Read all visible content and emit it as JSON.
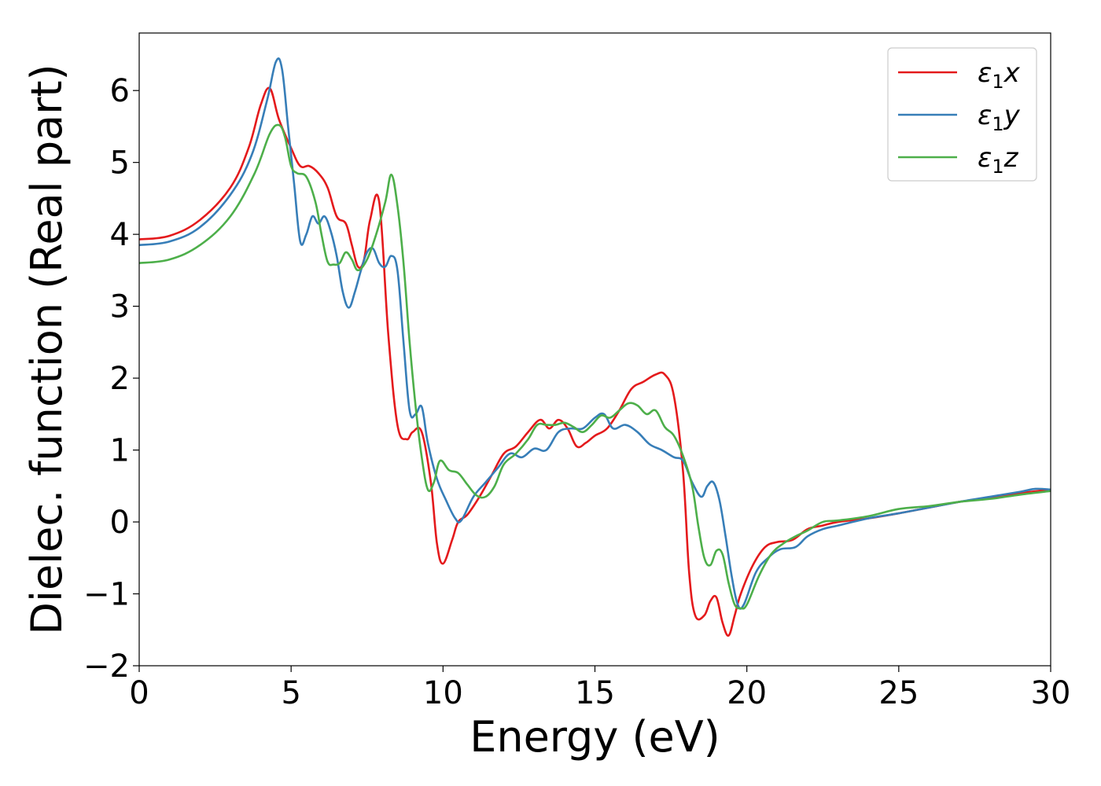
{
  "chart_data": {
    "type": "line",
    "title": "",
    "xlabel": "Energy (eV)",
    "ylabel": "Dielec. function (Real part)",
    "xlim": [
      0,
      30
    ],
    "ylim": [
      -2,
      6.8
    ],
    "xticks": [
      0,
      5,
      10,
      15,
      20,
      25,
      30
    ],
    "xtick_labels": [
      "0",
      "5",
      "10",
      "15",
      "20",
      "25",
      "30"
    ],
    "yticks": [
      -2,
      -1,
      0,
      1,
      2,
      3,
      4,
      5,
      6
    ],
    "ytick_labels": [
      "−2",
      "−1",
      "0",
      "1",
      "2",
      "3",
      "4",
      "5",
      "6"
    ],
    "grid": false,
    "legend_position": "top-right",
    "series": [
      {
        "name": "ε1x",
        "label_main": "ε",
        "label_sub": "1",
        "label_suffix": "x",
        "color": "#e41a1c",
        "x": [
          0,
          1,
          2,
          3,
          3.6,
          4.0,
          4.3,
          4.6,
          5.0,
          5.3,
          5.6,
          5.9,
          6.2,
          6.5,
          6.8,
          7.0,
          7.2,
          7.4,
          7.6,
          7.9,
          8.2,
          8.5,
          8.8,
          9.0,
          9.3,
          9.6,
          9.8,
          10.0,
          10.3,
          10.5,
          10.8,
          11.2,
          11.6,
          12.0,
          12.4,
          12.8,
          13.2,
          13.5,
          13.8,
          14.1,
          14.4,
          14.7,
          15.0,
          15.4,
          15.8,
          16.2,
          16.6,
          17.0,
          17.3,
          17.6,
          17.9,
          18.1,
          18.3,
          18.6,
          18.8,
          19.0,
          19.2,
          19.4,
          19.6,
          19.8,
          20.2,
          20.6,
          21.0,
          21.5,
          22.0,
          22.5,
          23,
          24,
          25,
          26,
          27,
          28,
          29,
          30
        ],
        "values": [
          3.93,
          3.98,
          4.2,
          4.65,
          5.2,
          5.8,
          6.03,
          5.6,
          5.2,
          4.95,
          4.95,
          4.85,
          4.65,
          4.25,
          4.15,
          3.85,
          3.55,
          3.65,
          4.2,
          4.45,
          2.6,
          1.35,
          1.15,
          1.25,
          1.25,
          0.55,
          -0.3,
          -0.58,
          -0.25,
          0.0,
          0.1,
          0.35,
          0.65,
          0.95,
          1.05,
          1.25,
          1.42,
          1.3,
          1.42,
          1.3,
          1.05,
          1.1,
          1.2,
          1.3,
          1.55,
          1.85,
          1.95,
          2.05,
          2.05,
          1.75,
          0.7,
          -0.7,
          -1.3,
          -1.3,
          -1.1,
          -1.05,
          -1.4,
          -1.58,
          -1.3,
          -1.0,
          -0.6,
          -0.35,
          -0.28,
          -0.25,
          -0.1,
          -0.05,
          0.0,
          0.05,
          0.12,
          0.2,
          0.28,
          0.33,
          0.4,
          0.45
        ]
      },
      {
        "name": "ε1y",
        "label_main": "ε",
        "label_sub": "1",
        "label_suffix": "y",
        "color": "#377eb8",
        "x": [
          0,
          1,
          2,
          3,
          3.7,
          4.2,
          4.5,
          4.7,
          4.9,
          5.1,
          5.3,
          5.5,
          5.7,
          5.9,
          6.1,
          6.3,
          6.5,
          6.7,
          6.9,
          7.1,
          7.3,
          7.5,
          7.7,
          7.9,
          8.1,
          8.3,
          8.5,
          8.7,
          8.9,
          9.1,
          9.3,
          9.5,
          9.8,
          10.1,
          10.4,
          10.6,
          11.0,
          11.4,
          11.8,
          12.2,
          12.6,
          13.0,
          13.4,
          13.8,
          14.2,
          14.6,
          15.0,
          15.3,
          15.6,
          16.0,
          16.4,
          16.8,
          17.2,
          17.6,
          17.9,
          18.2,
          18.5,
          18.7,
          18.9,
          19.1,
          19.3,
          19.5,
          19.7,
          19.9,
          20.3,
          20.7,
          21.1,
          21.6,
          22.0,
          22.5,
          23,
          24,
          25,
          26,
          27,
          28,
          29,
          29.5,
          30
        ],
        "values": [
          3.85,
          3.9,
          4.1,
          4.55,
          5.1,
          5.85,
          6.4,
          6.3,
          5.5,
          4.7,
          3.9,
          4.0,
          4.25,
          4.15,
          4.25,
          4.05,
          3.7,
          3.2,
          2.98,
          3.2,
          3.5,
          3.75,
          3.8,
          3.6,
          3.55,
          3.7,
          3.5,
          2.5,
          1.55,
          1.5,
          1.6,
          1.1,
          0.6,
          0.3,
          0.05,
          0.02,
          0.35,
          0.55,
          0.75,
          0.95,
          0.9,
          1.02,
          1.0,
          1.25,
          1.3,
          1.3,
          1.45,
          1.5,
          1.3,
          1.35,
          1.25,
          1.08,
          1.0,
          0.9,
          0.85,
          0.55,
          0.35,
          0.5,
          0.55,
          0.3,
          -0.2,
          -0.75,
          -1.15,
          -1.15,
          -0.7,
          -0.5,
          -0.38,
          -0.35,
          -0.2,
          -0.1,
          -0.05,
          0.05,
          0.12,
          0.2,
          0.28,
          0.35,
          0.42,
          0.46,
          0.45
        ]
      },
      {
        "name": "ε1z",
        "label_main": "ε",
        "label_sub": "1",
        "label_suffix": "z",
        "color": "#4daf4a",
        "x": [
          0,
          1,
          2,
          3,
          3.8,
          4.3,
          4.6,
          4.8,
          5.0,
          5.2,
          5.5,
          5.8,
          6.0,
          6.2,
          6.4,
          6.6,
          6.8,
          7.0,
          7.2,
          7.5,
          7.8,
          8.1,
          8.3,
          8.5,
          8.7,
          8.9,
          9.1,
          9.3,
          9.5,
          9.7,
          9.9,
          10.2,
          10.5,
          10.8,
          11.1,
          11.4,
          11.7,
          12.0,
          12.4,
          12.8,
          13.1,
          13.4,
          13.7,
          14.0,
          14.3,
          14.6,
          14.9,
          15.2,
          15.5,
          15.8,
          16.1,
          16.4,
          16.7,
          17.0,
          17.3,
          17.6,
          17.9,
          18.2,
          18.4,
          18.6,
          18.8,
          19.0,
          19.2,
          19.4,
          19.6,
          19.8,
          20.0,
          20.4,
          20.8,
          21.2,
          21.6,
          22.0,
          22.5,
          23,
          24,
          25,
          26,
          27,
          28,
          29,
          30
        ],
        "values": [
          3.6,
          3.65,
          3.85,
          4.25,
          4.85,
          5.4,
          5.52,
          5.35,
          4.95,
          4.85,
          4.8,
          4.45,
          4.0,
          3.62,
          3.58,
          3.6,
          3.75,
          3.65,
          3.5,
          3.65,
          4.0,
          4.45,
          4.83,
          4.4,
          3.6,
          2.5,
          1.6,
          0.9,
          0.45,
          0.55,
          0.85,
          0.72,
          0.68,
          0.52,
          0.37,
          0.35,
          0.5,
          0.8,
          0.95,
          1.15,
          1.35,
          1.35,
          1.35,
          1.38,
          1.32,
          1.25,
          1.35,
          1.48,
          1.45,
          1.55,
          1.65,
          1.62,
          1.5,
          1.55,
          1.32,
          1.2,
          0.92,
          0.5,
          -0.05,
          -0.5,
          -0.6,
          -0.4,
          -0.45,
          -0.85,
          -1.15,
          -1.2,
          -1.15,
          -0.75,
          -0.45,
          -0.3,
          -0.2,
          -0.12,
          0.0,
          0.02,
          0.08,
          0.18,
          0.22,
          0.28,
          0.32,
          0.38,
          0.43
        ]
      }
    ]
  }
}
